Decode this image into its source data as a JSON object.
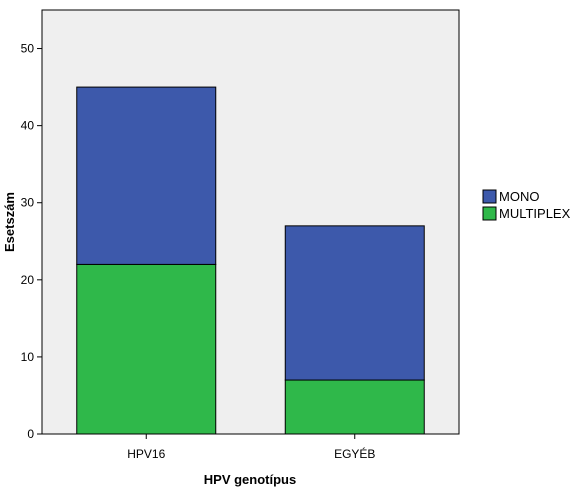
{
  "chart_data": {
    "type": "bar",
    "stacked": true,
    "categories": [
      "HPV16",
      "EGYÉB"
    ],
    "series": [
      {
        "name": "MULTIPLEX",
        "values": [
          22,
          7
        ],
        "color": "#2fb84a"
      },
      {
        "name": "MONO",
        "values": [
          23,
          20
        ],
        "color": "#3d59ab"
      }
    ],
    "legend_order": [
      "MONO",
      "MULTIPLEX"
    ],
    "title": "",
    "xlabel": "HPV genotípus",
    "ylabel": "Esetszám",
    "ylim": [
      0,
      55
    ],
    "yticks": [
      0,
      10,
      20,
      30,
      40,
      50
    ],
    "grid": false,
    "legend_position": "right",
    "plot_background": "#efefef"
  }
}
